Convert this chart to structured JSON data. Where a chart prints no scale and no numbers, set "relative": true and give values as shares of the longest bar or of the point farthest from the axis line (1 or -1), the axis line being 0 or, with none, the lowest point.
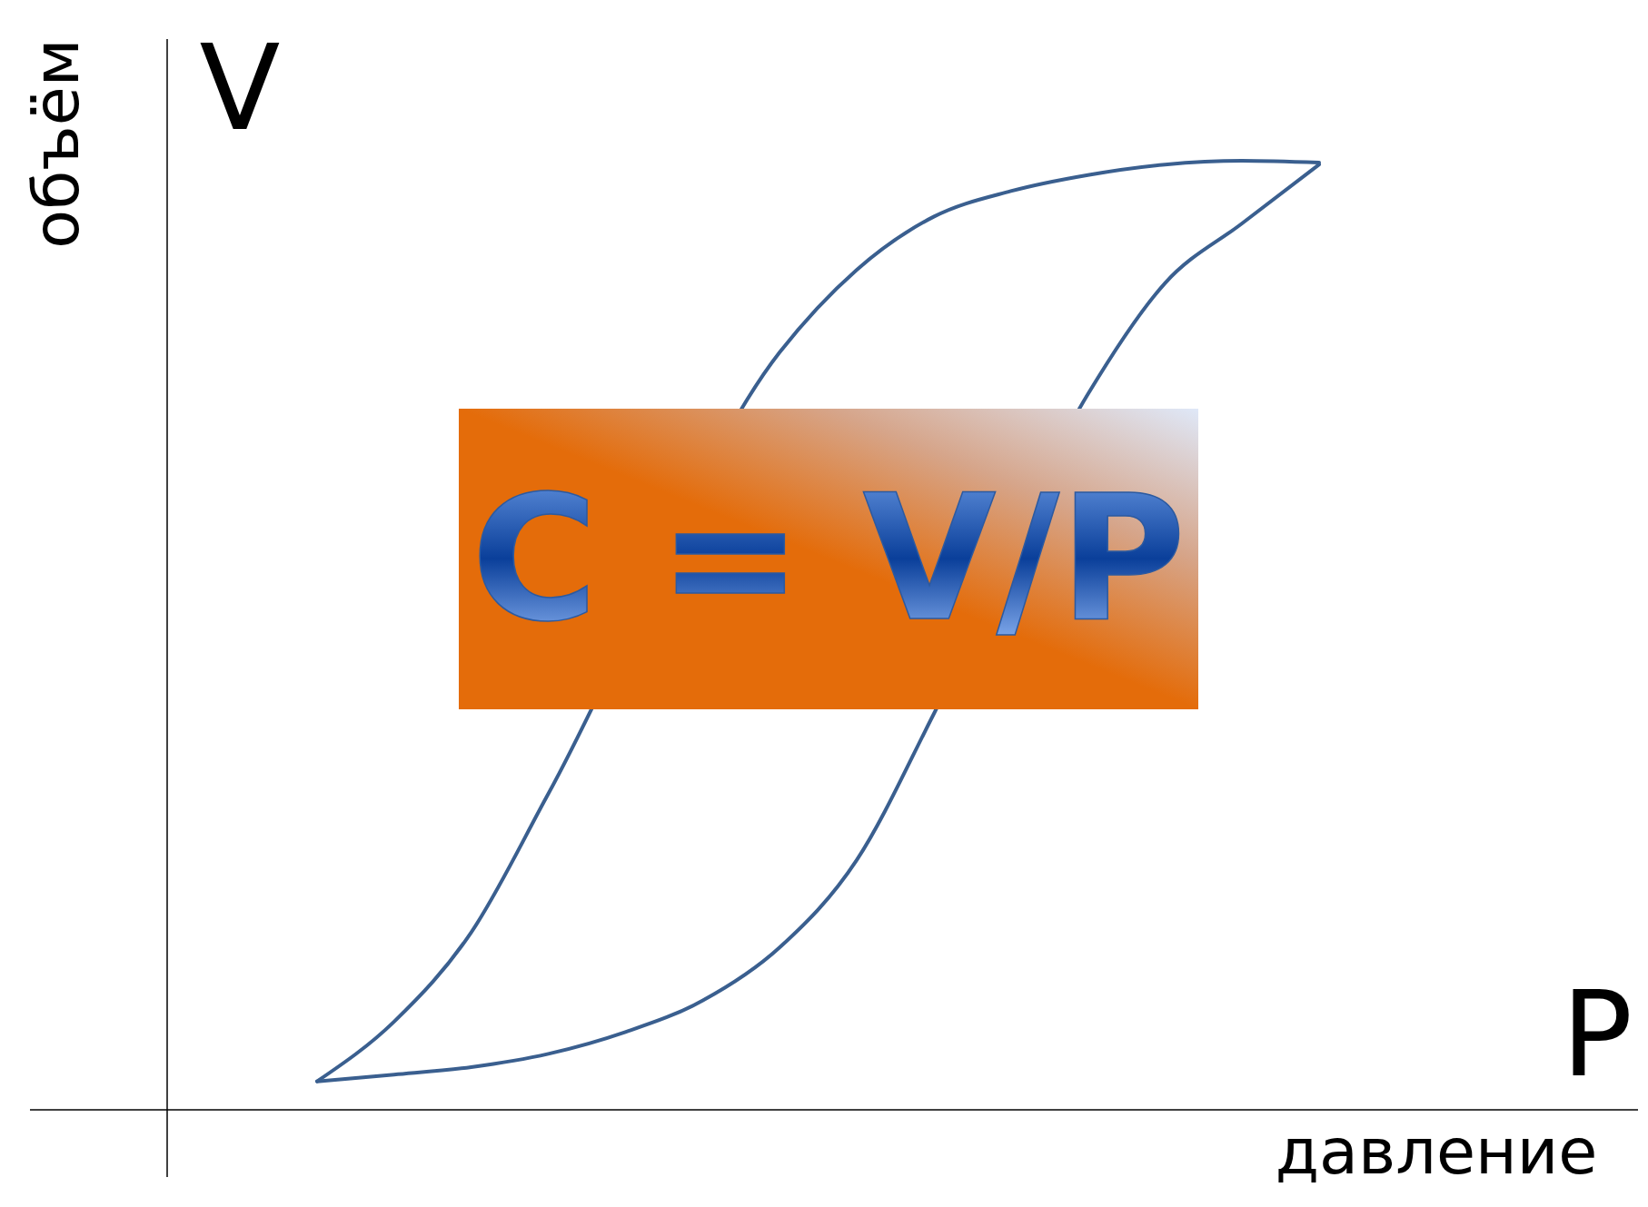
{
  "chart_data": {
    "type": "line",
    "relative": true,
    "xlabel": "давление",
    "ylabel": "объём",
    "annotations": [
      "V",
      "P",
      "C = V/P"
    ],
    "categories": [
      null,
      null,
      null,
      null,
      null,
      null,
      null,
      null,
      null,
      null,
      null,
      null,
      null,
      null
    ],
    "series": [
      {
        "color": "#3a5f8f",
        "values": [
          0.03,
          0.093,
          0.187,
          0.333,
          null,
          null,
          0.798,
          0.885,
          0.941,
          0.968,
          0.985,
          0.996,
          1.0,
          0.998
        ]
      },
      {
        "color": "#3a5f8f",
        "values": [
          0.03,
          0.037,
          0.045,
          0.059,
          0.082,
          0.115,
          0.171,
          0.263,
          0.417,
          null,
          0.754,
          0.871,
          0.934,
          0.996
        ]
      }
    ]
  }
}
